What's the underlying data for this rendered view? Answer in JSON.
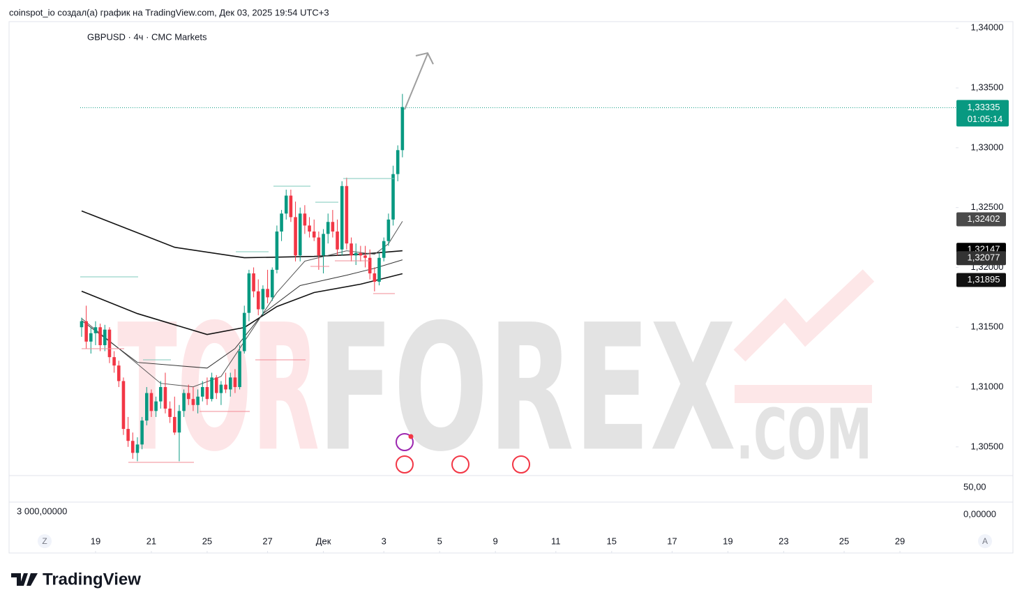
{
  "header": {
    "text": "coinspot_io создал(а) график на TradingView.com, Дек 03, 2025 19:54 UTC+3"
  },
  "chart_data": {
    "type": "candlestick",
    "title": "GBPUSD · 4ч · CMC Markets",
    "up_color": "#089981",
    "down_color": "#f23645",
    "open": [
      1.315,
      1.3155,
      1.3138,
      1.3145,
      1.315,
      1.3135,
      1.3148,
      1.3125,
      1.3118,
      1.3105,
      1.3065,
      1.3055,
      1.3045,
      1.3052,
      1.3072,
      1.3095,
      1.308,
      1.3088,
      1.31,
      1.3082,
      1.3075,
      1.3062,
      1.308,
      1.3095,
      1.309,
      1.3085,
      1.3092,
      1.31,
      1.309,
      1.3108,
      1.3095,
      1.3102,
      1.3098,
      1.3108,
      1.31,
      1.313,
      1.3162,
      1.3195,
      1.318,
      1.3165,
      1.3182,
      1.3175,
      1.3198,
      1.323,
      1.3245,
      1.326,
      1.3242,
      1.321,
      1.3245,
      1.3235,
      1.323,
      1.3225,
      1.321,
      1.3228,
      1.3238,
      1.323,
      1.3215,
      1.3268,
      1.322,
      1.321,
      1.3212,
      1.321,
      1.3208,
      1.3195,
      1.3188,
      1.3208,
      1.3222,
      1.324,
      1.3278,
      1.3298
    ],
    "high": [
      1.3158,
      1.3168,
      1.315,
      1.3155,
      1.3153,
      1.3152,
      1.315,
      1.313,
      1.3122,
      1.3108,
      1.3075,
      1.3062,
      1.3058,
      1.3075,
      1.31,
      1.3098,
      1.3092,
      1.3105,
      1.3112,
      1.3088,
      1.3092,
      1.3085,
      1.3098,
      1.3102,
      1.31,
      1.3098,
      1.3105,
      1.3108,
      1.3112,
      1.311,
      1.3105,
      1.3112,
      1.3112,
      1.3115,
      1.3135,
      1.3168,
      1.3198,
      1.32,
      1.319,
      1.3185,
      1.3198,
      1.32,
      1.3235,
      1.3248,
      1.3265,
      1.3265,
      1.3255,
      1.325,
      1.3252,
      1.3242,
      1.324,
      1.323,
      1.3232,
      1.3245,
      1.3248,
      1.324,
      1.3272,
      1.3275,
      1.3225,
      1.322,
      1.3218,
      1.3218,
      1.3215,
      1.32,
      1.3212,
      1.3225,
      1.3245,
      1.3285,
      1.3302,
      1.3345
    ],
    "low": [
      1.3142,
      1.3132,
      1.3128,
      1.3135,
      1.313,
      1.313,
      1.312,
      1.3112,
      1.31,
      1.306,
      1.305,
      1.304,
      1.3038,
      1.3048,
      1.3068,
      1.3075,
      1.3075,
      1.3082,
      1.3078,
      1.307,
      1.306,
      1.3038,
      1.3075,
      1.3085,
      1.308,
      1.3078,
      1.3088,
      1.3085,
      1.3088,
      1.309,
      1.3085,
      1.3095,
      1.3092,
      1.3095,
      1.3098,
      1.3128,
      1.3155,
      1.3175,
      1.316,
      1.316,
      1.317,
      1.3172,
      1.3195,
      1.3222,
      1.324,
      1.3238,
      1.3205,
      1.3205,
      1.3228,
      1.3225,
      1.3222,
      1.3198,
      1.3195,
      1.322,
      1.3225,
      1.321,
      1.321,
      1.3215,
      1.3205,
      1.3202,
      1.3205,
      1.32,
      1.319,
      1.318,
      1.3185,
      1.3205,
      1.3218,
      1.3235,
      1.3272,
      1.3292
    ],
    "close": [
      1.3155,
      1.3138,
      1.3145,
      1.315,
      1.3135,
      1.3148,
      1.3125,
      1.3118,
      1.3105,
      1.3065,
      1.3055,
      1.3045,
      1.3052,
      1.3072,
      1.3095,
      1.308,
      1.3088,
      1.31,
      1.3082,
      1.3075,
      1.3062,
      1.308,
      1.3095,
      1.309,
      1.3085,
      1.3092,
      1.31,
      1.309,
      1.3108,
      1.3095,
      1.3102,
      1.3098,
      1.3108,
      1.31,
      1.313,
      1.3162,
      1.3195,
      1.318,
      1.3165,
      1.3182,
      1.3175,
      1.3198,
      1.323,
      1.3245,
      1.326,
      1.3242,
      1.321,
      1.3245,
      1.3235,
      1.323,
      1.3225,
      1.321,
      1.3228,
      1.3238,
      1.323,
      1.3215,
      1.3268,
      1.322,
      1.321,
      1.3212,
      1.321,
      1.3208,
      1.3195,
      1.3188,
      1.3208,
      1.3222,
      1.324,
      1.3278,
      1.3298,
      1.3334
    ],
    "lines": [
      {
        "color": "#111111",
        "width": 1.6,
        "x": [
          0,
          20,
          35,
          50,
          60,
          69
        ],
        "values": [
          1.32472,
          1.32168,
          1.32081,
          1.32092,
          1.3211,
          1.32139
        ]
      },
      {
        "color": "#111111",
        "width": 1.6,
        "x": [
          0,
          12,
          27,
          35,
          42,
          50,
          60,
          69
        ],
        "values": [
          1.31801,
          1.31614,
          1.31439,
          1.31498,
          1.31673,
          1.3179,
          1.3186,
          1.31947
        ]
      },
      {
        "color": "#555555",
        "width": 1,
        "x": [
          0,
          8,
          17,
          24,
          30,
          36,
          42,
          48,
          57,
          63,
          66,
          69
        ],
        "values": [
          1.31573,
          1.31322,
          1.31031,
          1.31002,
          1.31089,
          1.31439,
          1.3179,
          1.32052,
          1.32139,
          1.3211,
          1.32198,
          1.32385
        ]
      },
      {
        "color": "#333333",
        "width": 1,
        "x": [
          0,
          12,
          27,
          33,
          39,
          47,
          57,
          63,
          69
        ],
        "values": [
          1.31556,
          1.31206,
          1.31159,
          1.31322,
          1.31614,
          1.31848,
          1.31935,
          1.31993,
          1.32063
        ]
      }
    ],
    "ylim": [
      1.3026,
      1.3406
    ],
    "yticks": [
      {
        "value": 1.305,
        "label": "1,30500"
      },
      {
        "value": 1.31,
        "label": "1,31000"
      },
      {
        "value": 1.315,
        "label": "1,31500"
      },
      {
        "value": 1.32,
        "label": "1,32000"
      },
      {
        "value": 1.325,
        "label": "1,32500"
      },
      {
        "value": 1.33,
        "label": "1,33000"
      },
      {
        "value": 1.335,
        "label": "1,33500"
      },
      {
        "value": 1.34,
        "label": "1,34000"
      }
    ],
    "xlim": [
      -15.6,
      188
    ],
    "xticks": [
      {
        "value": 3,
        "label": "19"
      },
      {
        "value": 15,
        "label": "21"
      },
      {
        "value": 27,
        "label": "25"
      },
      {
        "value": 40,
        "label": "27"
      },
      {
        "value": 52,
        "label": "Дек"
      },
      {
        "value": 65,
        "label": "3"
      },
      {
        "value": 77,
        "label": "5"
      },
      {
        "value": 89,
        "label": "9"
      },
      {
        "value": 102,
        "label": "11"
      },
      {
        "value": 114,
        "label": "15"
      },
      {
        "value": 127,
        "label": "17"
      },
      {
        "value": 139,
        "label": "19"
      },
      {
        "value": 151,
        "label": "23"
      },
      {
        "value": 164,
        "label": "25"
      },
      {
        "value": 176,
        "label": "29"
      }
    ],
    "price_tags": [
      {
        "value": 1.33335,
        "label": "1,33335",
        "color": "#089981",
        "countdown": "01:05:14"
      },
      {
        "value": 1.32402,
        "label": "1,32402",
        "color": "#4a4a4a"
      },
      {
        "value": 1.32147,
        "label": "1,32147",
        "color": "#000000"
      },
      {
        "value": 1.32077,
        "label": "1,32077",
        "color": "#333333"
      },
      {
        "value": 1.31895,
        "label": "1,31895",
        "color": "#111111"
      }
    ]
  },
  "lower_pane": {
    "scale_top": "50,00",
    "left_value": "3 000,00000",
    "scale_bottom": "0,00000"
  },
  "axis_buttons": {
    "left": "Z",
    "right": "A"
  },
  "watermark": {
    "part1": "TOR",
    "part2": "FOREX",
    "part3": ".COM"
  },
  "footer": {
    "brand": "TradingView"
  }
}
